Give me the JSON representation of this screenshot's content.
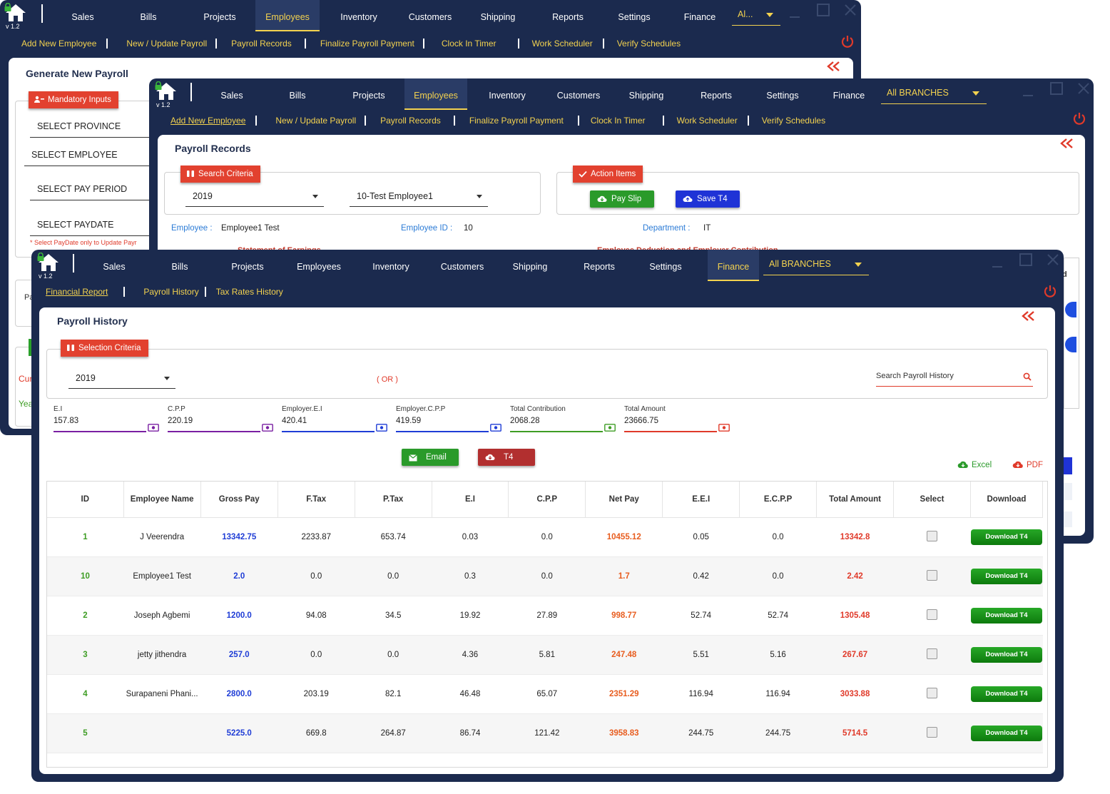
{
  "version": "v 1.2",
  "main_menu": [
    "Sales",
    "Bills",
    "Projects",
    "Employees",
    "Inventory",
    "Customers",
    "Shipping",
    "Reports",
    "Settings",
    "Finance"
  ],
  "win1": {
    "branch": "Al...",
    "submenu": [
      "Add New Employee",
      "New / Update Payroll",
      "Payroll Records",
      "Finalize Payroll Payment",
      "Clock In Timer",
      "Work Scheduler",
      "Verify Schedules"
    ],
    "title": "Generate New Payroll",
    "mandatory_label": "Mandatory Inputs",
    "fields": [
      "SELECT PROVINCE",
      "SELECT EMPLOYEE",
      "SELECT PAY PERIOD",
      "SELECT PAYDATE"
    ],
    "note": "* Select PayDate only to Update Payr",
    "peek": {
      "p": "Pa",
      "cu": "Cur",
      "ye": "Yea"
    }
  },
  "win2": {
    "branch": "All BRANCHES",
    "submenu": [
      "Add New Employee",
      "New / Update Payroll",
      "Payroll Records",
      "Finalize Payroll Payment",
      "Clock In Timer",
      "Work Scheduler",
      "Verify Schedules"
    ],
    "title": "Payroll Records",
    "search_label": "Search Criteria",
    "action_label": "Action Items",
    "year": "2019",
    "employee_select": "10-Test Employee1",
    "pay_slip": "Pay Slip",
    "save_t4": "Save T4",
    "employee_label": "Employee :",
    "employee_value": "Employee1 Test",
    "employee_id_label": "Employee ID :",
    "employee_id_value": "10",
    "department_label": "Department :",
    "department_value": "IT",
    "peek_earn": "Statement of Earnings",
    "peek_deduct": "Employee Deduction and Employer Contribution",
    "peek_d": "d"
  },
  "win3": {
    "branch": "All BRANCHES",
    "submenu": [
      "Financial Report",
      "Payroll History",
      "Tax Rates History"
    ],
    "title": "Payroll History",
    "selection_label": "Selection Criteria",
    "year": "2019",
    "or_text": "( OR )",
    "search_placeholder": "Search Payroll History",
    "totals": [
      {
        "label": "E.I",
        "value": "157.83",
        "color": "#7a1fa2"
      },
      {
        "label": "C.P.P",
        "value": "220.19",
        "color": "#7a1fa2"
      },
      {
        "label": "Employer.E.I",
        "value": "420.41",
        "color": "#1f3dd6"
      },
      {
        "label": "Employer.C.P.P",
        "value": "419.59",
        "color": "#1f3dd6"
      },
      {
        "label": "Total Contribution",
        "value": "2068.28",
        "color": "#3e9d24"
      },
      {
        "label": "Total Amount",
        "value": "23666.75",
        "color": "#e03a2a"
      }
    ],
    "email_label": "Email",
    "t4_label": "T4",
    "excel_label": "Excel",
    "pdf_label": "PDF",
    "columns": [
      "ID",
      "Employee Name",
      "Gross Pay",
      "F.Tax",
      "P.Tax",
      "E.I",
      "C.P.P",
      "Net Pay",
      "E.E.I",
      "E.C.P.P",
      "Total Amount",
      "Select",
      "Download"
    ],
    "download_label": "Download T4",
    "rows": [
      {
        "id": "1",
        "name": "J Veerendra",
        "gross": "13342.75",
        "ftax": "2233.87",
        "ptax": "653.74",
        "ei": "0.03",
        "cpp": "0.0",
        "net": "10455.12",
        "eei": "0.05",
        "ecpp": "0.0",
        "total": "13342.8"
      },
      {
        "id": "10",
        "name": "Employee1 Test",
        "gross": "2.0",
        "ftax": "0.0",
        "ptax": "0.0",
        "ei": "0.3",
        "cpp": "0.0",
        "net": "1.7",
        "eei": "0.42",
        "ecpp": "0.0",
        "total": "2.42"
      },
      {
        "id": "2",
        "name": "Joseph Agbemi",
        "gross": "1200.0",
        "ftax": "94.08",
        "ptax": "34.5",
        "ei": "19.92",
        "cpp": "27.89",
        "net": "998.77",
        "eei": "52.74",
        "ecpp": "52.74",
        "total": "1305.48"
      },
      {
        "id": "3",
        "name": "jetty jithendra",
        "gross": "257.0",
        "ftax": "0.0",
        "ptax": "0.0",
        "ei": "4.36",
        "cpp": "5.81",
        "net": "247.48",
        "eei": "5.51",
        "ecpp": "5.16",
        "total": "267.67"
      },
      {
        "id": "4",
        "name": "Surapaneni Phani...",
        "gross": "2800.0",
        "ftax": "203.19",
        "ptax": "82.1",
        "ei": "46.48",
        "cpp": "65.07",
        "net": "2351.29",
        "eei": "116.94",
        "ecpp": "116.94",
        "total": "3033.88"
      },
      {
        "id": "5",
        "name": "",
        "gross": "5225.0",
        "ftax": "669.8",
        "ptax": "264.87",
        "ei": "86.74",
        "cpp": "121.42",
        "net": "3958.83",
        "eei": "244.75",
        "ecpp": "244.75",
        "total": "5714.5"
      }
    ]
  }
}
